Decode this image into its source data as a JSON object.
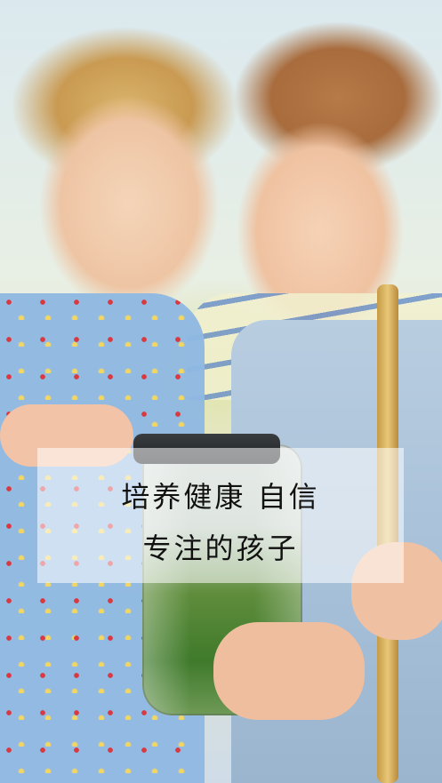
{
  "caption": {
    "line1": "培养健康 自信",
    "line2": "专注的孩子"
  }
}
